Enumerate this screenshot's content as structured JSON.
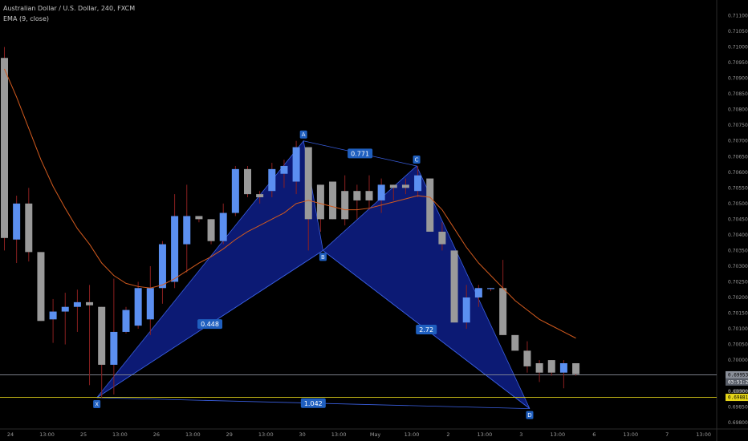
{
  "legend": {
    "symbol": "Australian Dollar / U.S. Dollar, 240, FXCM",
    "indicator": "EMA (9, close)"
  },
  "colors": {
    "background": "#000000",
    "bull": "#5b8ff0",
    "bear": "#9a9a9a",
    "ema": "#d25a1e",
    "pattern_fill": "#0d1b7a",
    "pattern_line": "#3a5fe0",
    "price_line": "#8a8f99",
    "horizontal_line": "#e6d619"
  },
  "chart_data": {
    "type": "candlestick",
    "ylim": [
      0.6978,
      0.7115
    ],
    "y_ticks": [
      "0.71100",
      "0.71050",
      "0.71000",
      "0.70950",
      "0.70900",
      "0.70850",
      "0.70800",
      "0.70750",
      "0.70700",
      "0.70650",
      "0.70600",
      "0.70550",
      "0.70500",
      "0.70450",
      "0.70400",
      "0.70350",
      "0.70300",
      "0.70250",
      "0.70200",
      "0.70150",
      "0.70100",
      "0.70050",
      "0.70000",
      "0.69950",
      "0.69900",
      "0.69850",
      "0.69800"
    ],
    "x_ticks": [
      {
        "label": "24",
        "i": 0.5
      },
      {
        "label": "13:00",
        "i": 3.5
      },
      {
        "label": "25",
        "i": 6.5
      },
      {
        "label": "13:00",
        "i": 9.5
      },
      {
        "label": "26",
        "i": 12.5
      },
      {
        "label": "13:00",
        "i": 15.5
      },
      {
        "label": "29",
        "i": 18.5
      },
      {
        "label": "13:00",
        "i": 21.5
      },
      {
        "label": "30",
        "i": 24.5
      },
      {
        "label": "13:00",
        "i": 27.5
      },
      {
        "label": "May",
        "i": 30.5
      },
      {
        "label": "13:00",
        "i": 33.5
      },
      {
        "label": "2",
        "i": 36.5
      },
      {
        "label": "13:00",
        "i": 39.5
      },
      {
        "label": "3",
        "i": 42.5
      },
      {
        "label": "13:00",
        "i": 45.5
      },
      {
        "label": "6",
        "i": 48.5
      },
      {
        "label": "13:00",
        "i": 51.5
      },
      {
        "label": "7",
        "i": 54.5
      },
      {
        "label": "13:00",
        "i": 57.5
      }
    ],
    "candles": [
      {
        "o": 0.70965,
        "h": 0.71,
        "l": 0.7035,
        "c": 0.7039
      },
      {
        "o": 0.70385,
        "h": 0.70525,
        "l": 0.7031,
        "c": 0.705
      },
      {
        "o": 0.705,
        "h": 0.7055,
        "l": 0.70315,
        "c": 0.70345
      },
      {
        "o": 0.70345,
        "h": 0.70345,
        "l": 0.70125,
        "c": 0.70125
      },
      {
        "o": 0.7013,
        "h": 0.70195,
        "l": 0.70055,
        "c": 0.70155
      },
      {
        "o": 0.70155,
        "h": 0.70215,
        "l": 0.7005,
        "c": 0.7017
      },
      {
        "o": 0.7017,
        "h": 0.70225,
        "l": 0.7009,
        "c": 0.70185
      },
      {
        "o": 0.70185,
        "h": 0.7024,
        "l": 0.6992,
        "c": 0.70175
      },
      {
        "o": 0.7017,
        "h": 0.7017,
        "l": 0.6988,
        "c": 0.69985
      },
      {
        "o": 0.69985,
        "h": 0.7026,
        "l": 0.6989,
        "c": 0.7009
      },
      {
        "o": 0.7009,
        "h": 0.7017,
        "l": 0.70085,
        "c": 0.7016
      },
      {
        "o": 0.7011,
        "h": 0.7025,
        "l": 0.701,
        "c": 0.7023
      },
      {
        "o": 0.7013,
        "h": 0.703,
        "l": 0.7008,
        "c": 0.7023
      },
      {
        "o": 0.7023,
        "h": 0.7038,
        "l": 0.7018,
        "c": 0.7037
      },
      {
        "o": 0.7025,
        "h": 0.7053,
        "l": 0.7023,
        "c": 0.7046
      },
      {
        "o": 0.7037,
        "h": 0.7056,
        "l": 0.7028,
        "c": 0.7046
      },
      {
        "o": 0.7046,
        "h": 0.7046,
        "l": 0.7044,
        "c": 0.7045
      },
      {
        "o": 0.7045,
        "h": 0.7045,
        "l": 0.7037,
        "c": 0.7038
      },
      {
        "o": 0.7038,
        "h": 0.705,
        "l": 0.7037,
        "c": 0.7047
      },
      {
        "o": 0.7047,
        "h": 0.7062,
        "l": 0.7046,
        "c": 0.7061
      },
      {
        "o": 0.7061,
        "h": 0.7062,
        "l": 0.7052,
        "c": 0.7053
      },
      {
        "o": 0.7053,
        "h": 0.7054,
        "l": 0.705,
        "c": 0.7052
      },
      {
        "o": 0.7054,
        "h": 0.7063,
        "l": 0.7052,
        "c": 0.7061
      },
      {
        "o": 0.70595,
        "h": 0.7064,
        "l": 0.7055,
        "c": 0.7062
      },
      {
        "o": 0.7057,
        "h": 0.707,
        "l": 0.7053,
        "c": 0.7068
      },
      {
        "o": 0.7068,
        "h": 0.7068,
        "l": 0.7035,
        "c": 0.7045
      },
      {
        "o": 0.7056,
        "h": 0.7056,
        "l": 0.7041,
        "c": 0.7045
      },
      {
        "o": 0.7057,
        "h": 0.7057,
        "l": 0.7045,
        "c": 0.7045
      },
      {
        "o": 0.7054,
        "h": 0.7059,
        "l": 0.7043,
        "c": 0.7045
      },
      {
        "o": 0.7054,
        "h": 0.7056,
        "l": 0.7045,
        "c": 0.7051
      },
      {
        "o": 0.7054,
        "h": 0.7059,
        "l": 0.7048,
        "c": 0.7051
      },
      {
        "o": 0.7051,
        "h": 0.7058,
        "l": 0.7047,
        "c": 0.7056
      },
      {
        "o": 0.7056,
        "h": 0.7056,
        "l": 0.7051,
        "c": 0.7055
      },
      {
        "o": 0.7056,
        "h": 0.7058,
        "l": 0.7053,
        "c": 0.7055
      },
      {
        "o": 0.7054,
        "h": 0.7062,
        "l": 0.7052,
        "c": 0.7059
      },
      {
        "o": 0.7058,
        "h": 0.7058,
        "l": 0.7041,
        "c": 0.7041
      },
      {
        "o": 0.7041,
        "h": 0.7044,
        "l": 0.7035,
        "c": 0.7037
      },
      {
        "o": 0.7035,
        "h": 0.7035,
        "l": 0.7012,
        "c": 0.7012
      },
      {
        "o": 0.7012,
        "h": 0.7024,
        "l": 0.701,
        "c": 0.702
      },
      {
        "o": 0.702,
        "h": 0.7024,
        "l": 0.7017,
        "c": 0.7023
      },
      {
        "o": 0.7023,
        "h": 0.7023,
        "l": 0.7022,
        "c": 0.7023
      },
      {
        "o": 0.7023,
        "h": 0.7032,
        "l": 0.7008,
        "c": 0.7008
      },
      {
        "o": 0.7008,
        "h": 0.7008,
        "l": 0.7003,
        "c": 0.7003
      },
      {
        "o": 0.7003,
        "h": 0.7006,
        "l": 0.6996,
        "c": 0.6998
      },
      {
        "o": 0.6999,
        "h": 0.7,
        "l": 0.6993,
        "c": 0.6996
      },
      {
        "o": 0.7,
        "h": 0.7,
        "l": 0.6995,
        "c": 0.6996
      },
      {
        "o": 0.6996,
        "h": 0.7,
        "l": 0.6991,
        "c": 0.6999
      },
      {
        "o": 0.6999,
        "h": 0.6999,
        "l": 0.6995,
        "c": 0.69955
      }
    ],
    "ema": [
      0.7093,
      0.7084,
      0.7074,
      0.7064,
      0.70555,
      0.70485,
      0.7042,
      0.7037,
      0.7031,
      0.7027,
      0.70245,
      0.70235,
      0.7023,
      0.7024,
      0.7026,
      0.70285,
      0.7031,
      0.7033,
      0.70355,
      0.70385,
      0.7041,
      0.7043,
      0.7045,
      0.7047,
      0.705,
      0.7051,
      0.705,
      0.7049,
      0.7048,
      0.7048,
      0.70485,
      0.70495,
      0.70505,
      0.70515,
      0.70525,
      0.7052,
      0.7048,
      0.7042,
      0.7036,
      0.7031,
      0.7027,
      0.7023,
      0.7019,
      0.7016,
      0.7013,
      0.7011,
      0.7009,
      0.7007
    ],
    "pattern": {
      "points": [
        {
          "label": "X",
          "i": 7.6,
          "price": 0.6988
        },
        {
          "label": "A",
          "i": 24.6,
          "price": 0.707
        },
        {
          "label": "B",
          "i": 26.2,
          "price": 0.7035
        },
        {
          "label": "C",
          "i": 33.9,
          "price": 0.7062
        },
        {
          "label": "D",
          "i": 43.2,
          "price": 0.69845
        }
      ],
      "ratios": [
        {
          "label": "0.771",
          "between": [
            "A",
            "C"
          ]
        },
        {
          "label": "0.448",
          "between": [
            "X",
            "B"
          ]
        },
        {
          "label": "2.72",
          "between": [
            "B",
            "D"
          ]
        },
        {
          "label": "1.042",
          "between": [
            "X",
            "D"
          ]
        }
      ]
    },
    "price_tags": [
      {
        "label": "0.69953",
        "price": 0.69953,
        "style": "price"
      },
      {
        "label": "03:51:21",
        "price": 0.6993,
        "style": "countdown"
      },
      {
        "label": "0.69900",
        "price": 0.699,
        "style": "plain"
      },
      {
        "label": "0.69881",
        "price": 0.69881,
        "style": "line"
      }
    ],
    "price_lines": [
      {
        "price": 0.69953,
        "color": "price_line"
      },
      {
        "price": 0.69881,
        "color": "horizontal_line"
      }
    ]
  }
}
